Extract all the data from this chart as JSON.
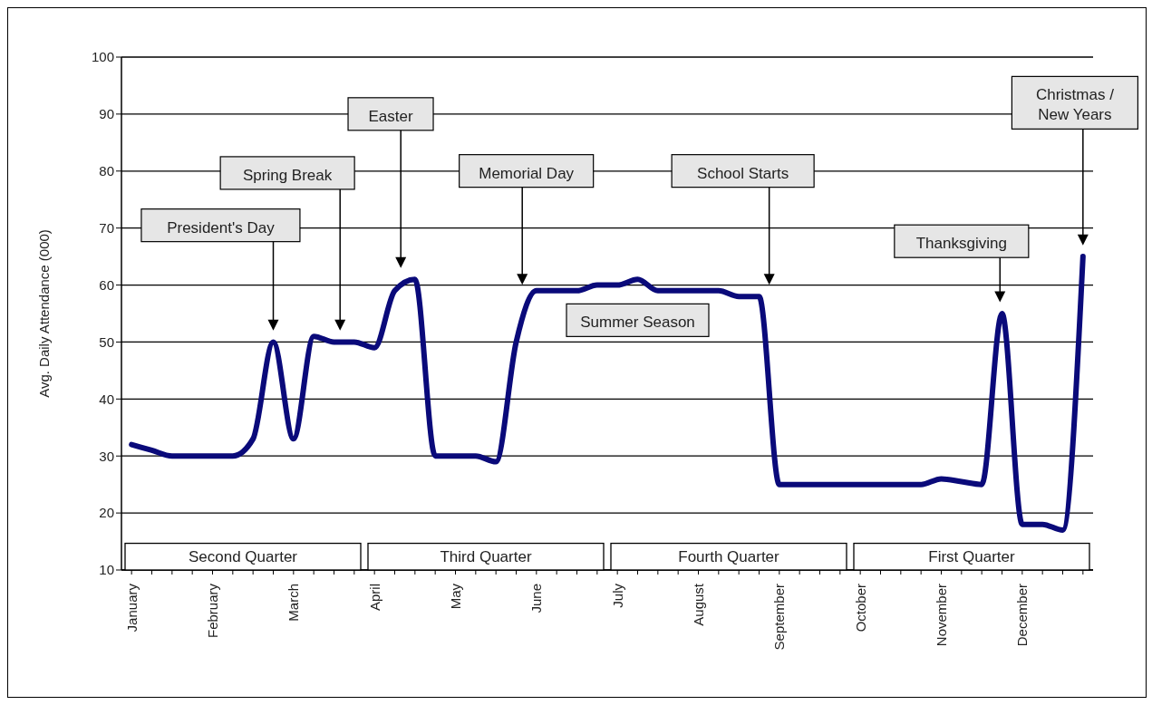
{
  "chart_data": {
    "type": "line",
    "ylabel": "Avg. Daily Attendance (000)",
    "categories": [
      "January",
      null,
      null,
      null,
      "February",
      null,
      null,
      null,
      "March",
      null,
      null,
      null,
      "April",
      null,
      null,
      null,
      "May",
      null,
      null,
      null,
      "June",
      null,
      null,
      null,
      "July",
      null,
      null,
      null,
      "August",
      null,
      null,
      null,
      "September",
      null,
      null,
      null,
      "October",
      null,
      null,
      null,
      "November",
      null,
      null,
      null,
      "December",
      null,
      null,
      null
    ],
    "series": [
      {
        "color": "#0a0a7a",
        "values": [
          32,
          31,
          30,
          30,
          30,
          30,
          33,
          50,
          33,
          51,
          50,
          50,
          49,
          59,
          61,
          30,
          30,
          30,
          29,
          50,
          59,
          59,
          59,
          60,
          60,
          61,
          59,
          59,
          59,
          59,
          58,
          58,
          25,
          25,
          25,
          25,
          25,
          25,
          25,
          25,
          26,
          25.5,
          25,
          55,
          18,
          18,
          17,
          65
        ]
      }
    ],
    "ylim": [
      10,
      100
    ],
    "yticks": [
      10,
      20,
      30,
      40,
      50,
      60,
      70,
      80,
      90,
      100
    ],
    "grid": "y",
    "marker": "none",
    "line_style": "solid",
    "annotations": [
      "President's Day",
      "Spring Break",
      "Easter",
      "Memorial Day",
      "School Starts",
      "Thanksgiving",
      "Christmas /\nNew Years",
      "Summer Season",
      "Second Quarter",
      "Third Quarter",
      "Fourth Quarter",
      "First Quarter"
    ]
  }
}
